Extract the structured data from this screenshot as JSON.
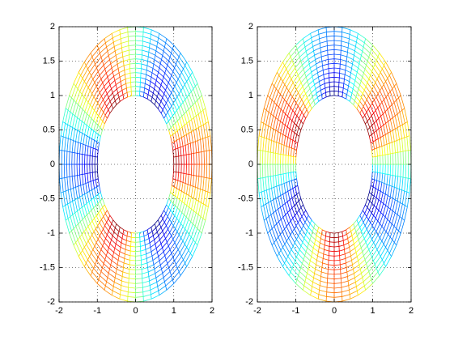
{
  "chart_data": [
    {
      "type": "polar-mesh",
      "rlim": [
        1,
        2
      ],
      "rings": 16,
      "spokes": 60,
      "harmonic": 3,
      "phase": "cos",
      "colormap": "jet",
      "clim": [
        -1,
        1
      ],
      "xlim": [
        -2,
        2
      ],
      "ylim": [
        -2,
        2
      ],
      "xticks": [
        -2,
        -1,
        0,
        1,
        2
      ],
      "yticks": [
        -2,
        -1.5,
        -1,
        -0.5,
        0,
        0.5,
        1,
        1.5,
        2
      ],
      "grid": true
    },
    {
      "type": "polar-mesh",
      "rlim": [
        1,
        2
      ],
      "rings": 16,
      "spokes": 60,
      "harmonic": 3,
      "phase": "sin",
      "colormap": "jet",
      "clim": [
        -1,
        1
      ],
      "xlim": [
        -2,
        2
      ],
      "ylim": [
        -2,
        2
      ],
      "xticks": [
        -2,
        -1,
        0,
        1,
        2
      ],
      "yticks": [
        -2,
        -1.5,
        -1,
        -0.5,
        0,
        0.5,
        1,
        1.5,
        2
      ],
      "grid": true
    }
  ]
}
